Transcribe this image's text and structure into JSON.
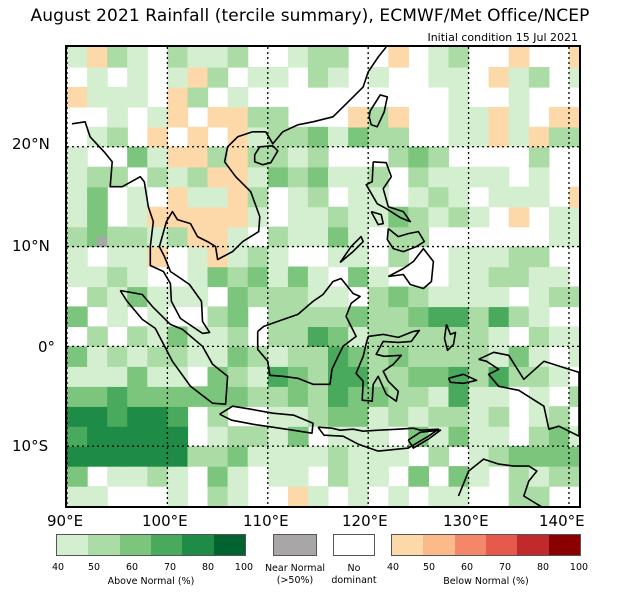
{
  "title": "August 2021 Rainfall (tercile summary), ECMWF/Met Office/NCEP",
  "subtitle": "Initial condition 15 Jul 2021",
  "map": {
    "lon_range": [
      90,
      141
    ],
    "lat_range": [
      -16,
      30
    ],
    "lat_labels": [
      "20°N",
      "10°N",
      "0°",
      "10°S"
    ],
    "lon_labels": [
      "90°E",
      "100°E",
      "110°E",
      "120°E",
      "130°E",
      "140°E"
    ],
    "gridlines": "dotted"
  },
  "legend": {
    "above": {
      "caption": "Above Normal (%)",
      "ticks": [
        "40",
        "50",
        "60",
        "70",
        "80",
        "100"
      ],
      "colors": [
        "#d4efcf",
        "#abdca5",
        "#7cc57c",
        "#49a95c",
        "#1e8b47",
        "#006330"
      ]
    },
    "near": {
      "caption_line1": "Near Normal",
      "caption_line2": "(>50%)",
      "color": "#a8a6a6"
    },
    "none": {
      "caption_line1": "No",
      "caption_line2": "dominant",
      "color": "#ffffff"
    },
    "below": {
      "caption": "Below Normal (%)",
      "ticks": [
        "40",
        "50",
        "60",
        "70",
        "80",
        "100"
      ],
      "colors": [
        "#fdd8a8",
        "#fcb98a",
        "#f4876a",
        "#e65a4b",
        "#c12a2a",
        "#8a0000"
      ]
    }
  }
}
